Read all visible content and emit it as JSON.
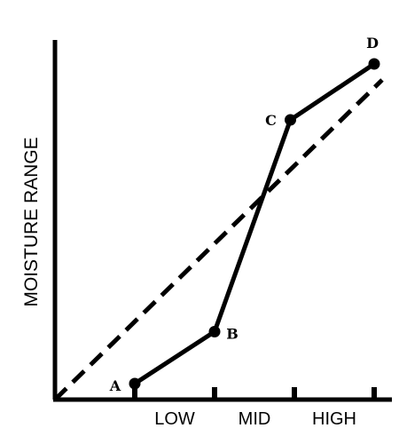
{
  "chart_data": {
    "type": "line",
    "title": "",
    "xlabel": "",
    "ylabel": "MOISTURE RANGE",
    "categories": [
      "LOW",
      "MID",
      "HIGH"
    ],
    "xlim": [
      0,
      4
    ],
    "ylim": [
      0,
      4.6
    ],
    "grid": false,
    "legend": "none",
    "series": [
      {
        "style": "solid",
        "points": [
          {
            "label": "A",
            "x": 1.0,
            "y": 0.2
          },
          {
            "label": "B",
            "x": 2.0,
            "y": 0.85
          },
          {
            "label": "C",
            "x": 2.95,
            "y": 3.5
          },
          {
            "label": "D",
            "x": 4.0,
            "y": 4.2
          }
        ]
      },
      {
        "style": "dashed",
        "points": [
          {
            "x": 0,
            "y": 0
          },
          {
            "x": 4.1,
            "y": 4.0
          }
        ]
      }
    ],
    "colors": {
      "line": "#000000",
      "background": "#ffffff"
    }
  }
}
